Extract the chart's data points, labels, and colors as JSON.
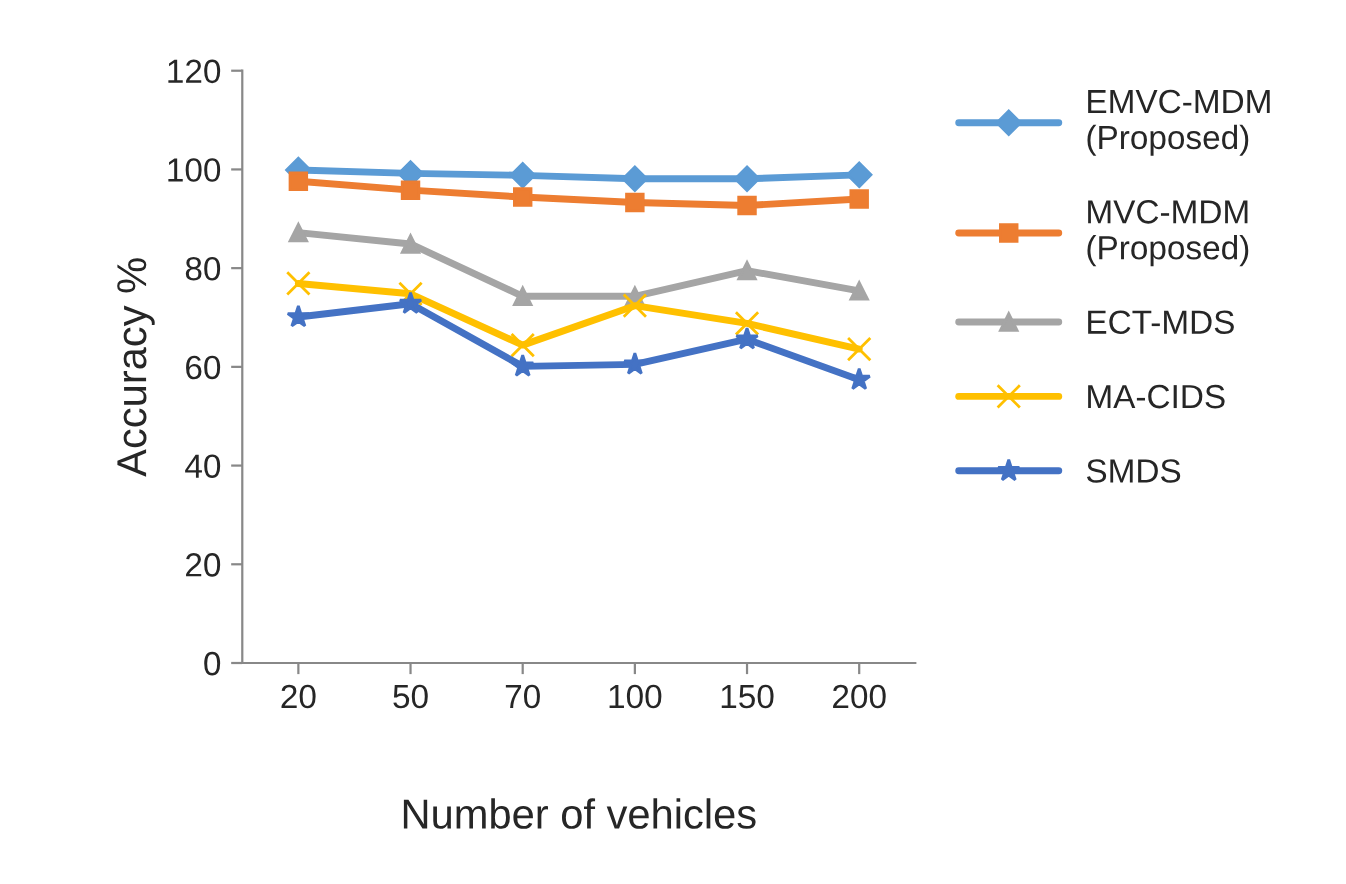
{
  "chart_data": {
    "type": "line",
    "xlabel": "Number of vehicles",
    "ylabel": "Accuracy %",
    "categories": [
      "20",
      "50",
      "70",
      "100",
      "150",
      "200"
    ],
    "ylim": [
      0,
      120
    ],
    "yticks": [
      0,
      20,
      40,
      60,
      80,
      100,
      120
    ],
    "grid": false,
    "legend": "right",
    "series": [
      {
        "name": "EMVC-MDM\n(Proposed)",
        "color": "#5b9bd5",
        "marker": "diamond",
        "values": [
          99.9,
          99.2,
          98.8,
          98.1,
          98.1,
          98.9
        ]
      },
      {
        "name": "MVC-MDM\n(Proposed)",
        "color": "#ed7d31",
        "marker": "square",
        "values": [
          97.6,
          95.8,
          94.4,
          93.3,
          92.7,
          94.0
        ]
      },
      {
        "name": "ECT-MDS",
        "color": "#a5a5a5",
        "marker": "triangle",
        "values": [
          87.2,
          84.9,
          74.3,
          74.3,
          79.5,
          75.4
        ]
      },
      {
        "name": "MA-CIDS",
        "color": "#ffc000",
        "marker": "cross",
        "values": [
          76.9,
          74.8,
          64.4,
          72.4,
          68.8,
          63.6
        ]
      },
      {
        "name": "SMDS",
        "color": "#4472c4",
        "marker": "star",
        "values": [
          70.1,
          72.8,
          60.1,
          60.5,
          65.6,
          57.4
        ]
      }
    ]
  }
}
